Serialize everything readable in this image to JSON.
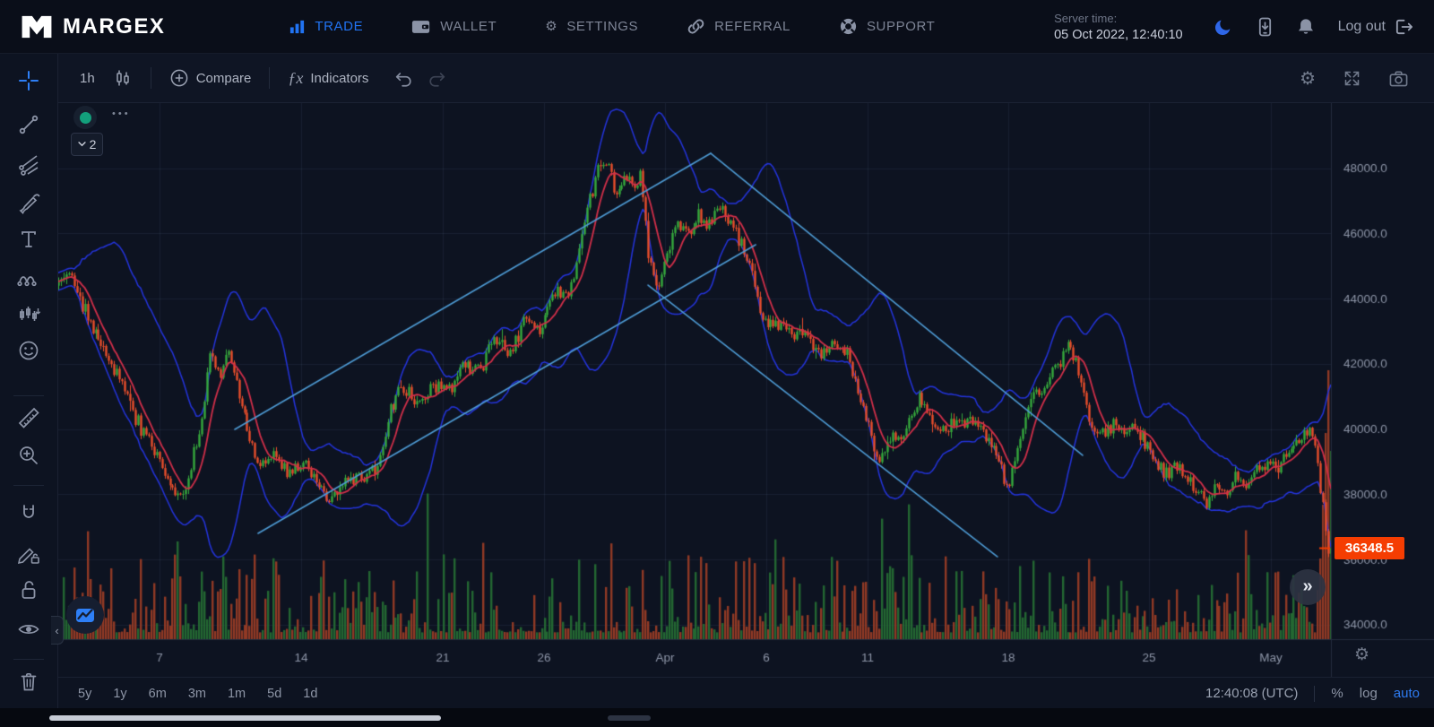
{
  "navbar": {
    "brand": "MARGEX",
    "items": [
      {
        "id": "trade",
        "label": "TRADE",
        "active": true
      },
      {
        "id": "wallet",
        "label": "WALLET",
        "active": false
      },
      {
        "id": "settings",
        "label": "SETTINGS",
        "active": false
      },
      {
        "id": "referral",
        "label": "REFERRAL",
        "active": false
      },
      {
        "id": "support",
        "label": "SUPPORT",
        "active": false
      }
    ],
    "server_time_label": "Server time:",
    "server_time_value": "05 Oct 2022, 12:40:10",
    "logout_label": "Log out"
  },
  "toolbar": {
    "interval": "1h",
    "compare_label": "Compare",
    "indicators_label": "Indicators",
    "indicators_icon": "ƒx"
  },
  "legend": {
    "more_icon": "•••",
    "collapse_count": "2"
  },
  "sidebar_tools": [
    "crosshair",
    "trend-line",
    "pitchfork",
    "brush",
    "text",
    "patterns",
    "bars-pattern",
    "emoji",
    "measure",
    "zoom-in",
    "magnet",
    "drawing-lock",
    "lock-all",
    "hide-drawings",
    "remove-drawings"
  ],
  "bottom_bar": {
    "ranges": [
      "5y",
      "1y",
      "6m",
      "3m",
      "1m",
      "5d",
      "1d"
    ],
    "clock": "12:40:08 (UTC)",
    "percent_label": "%",
    "log_label": "log",
    "auto_label": "auto"
  },
  "chart_data": {
    "type": "candlestick",
    "interval": "1h",
    "legend_collapsed_count": "2",
    "grid": true,
    "seed": 9,
    "candle_count": 480,
    "y_axis": {
      "price_top": 50000,
      "price_bottom": 33560,
      "ticks": [
        {
          "label": "48000.0",
          "value": 48000
        },
        {
          "label": "46000.0",
          "value": 46000
        },
        {
          "label": "44000.0",
          "value": 44000
        },
        {
          "label": "42000.0",
          "value": 42000
        },
        {
          "label": "40000.0",
          "value": 40000
        },
        {
          "label": "38000.0",
          "value": 38000
        },
        {
          "label": "36000.0",
          "value": 36000
        },
        {
          "label": "34000.0",
          "value": 34000
        }
      ]
    },
    "x_axis": {
      "labels": [
        {
          "label": "7",
          "t": 0.0796
        },
        {
          "label": "14",
          "t": 0.1908
        },
        {
          "label": "21",
          "t": 0.3021
        },
        {
          "label": "26",
          "t": 0.3817
        },
        {
          "label": "Apr",
          "t": 0.4768
        },
        {
          "label": "6",
          "t": 0.5563
        },
        {
          "label": "11",
          "t": 0.6359
        },
        {
          "label": "18",
          "t": 0.7465
        },
        {
          "label": "25",
          "t": 0.857
        },
        {
          "label": "May",
          "t": 0.9528
        }
      ]
    },
    "last_price": {
      "label": "36348.5",
      "value": 36348.5
    },
    "series_keypoints": [
      [
        0.0,
        44400
      ],
      [
        0.006,
        44850
      ],
      [
        0.018,
        43900
      ],
      [
        0.032,
        42700
      ],
      [
        0.046,
        41600
      ],
      [
        0.06,
        40400
      ],
      [
        0.074,
        39400
      ],
      [
        0.088,
        38300
      ],
      [
        0.096,
        37950
      ],
      [
        0.104,
        38700
      ],
      [
        0.112,
        40300
      ],
      [
        0.12,
        42400
      ],
      [
        0.127,
        41400
      ],
      [
        0.134,
        42550
      ],
      [
        0.143,
        40900
      ],
      [
        0.152,
        39300
      ],
      [
        0.16,
        38850
      ],
      [
        0.17,
        39400
      ],
      [
        0.18,
        38600
      ],
      [
        0.192,
        39100
      ],
      [
        0.204,
        38350
      ],
      [
        0.216,
        37800
      ],
      [
        0.228,
        38600
      ],
      [
        0.24,
        38350
      ],
      [
        0.252,
        39000
      ],
      [
        0.262,
        40800
      ],
      [
        0.272,
        41300
      ],
      [
        0.282,
        40700
      ],
      [
        0.294,
        41400
      ],
      [
        0.306,
        41100
      ],
      [
        0.318,
        42100
      ],
      [
        0.33,
        41700
      ],
      [
        0.342,
        42700
      ],
      [
        0.354,
        42300
      ],
      [
        0.366,
        43300
      ],
      [
        0.378,
        43000
      ],
      [
        0.39,
        44300
      ],
      [
        0.4,
        44050
      ],
      [
        0.408,
        45200
      ],
      [
        0.416,
        46900
      ],
      [
        0.424,
        48000
      ],
      [
        0.43,
        48200
      ],
      [
        0.438,
        47200
      ],
      [
        0.446,
        47750
      ],
      [
        0.452,
        47350
      ],
      [
        0.458,
        47800
      ],
      [
        0.464,
        45200
      ],
      [
        0.47,
        44400
      ],
      [
        0.478,
        45400
      ],
      [
        0.486,
        46350
      ],
      [
        0.494,
        45900
      ],
      [
        0.502,
        46550
      ],
      [
        0.51,
        46150
      ],
      [
        0.518,
        46800
      ],
      [
        0.528,
        46350
      ],
      [
        0.538,
        45600
      ],
      [
        0.548,
        44300
      ],
      [
        0.553,
        43400
      ],
      [
        0.57,
        43100
      ],
      [
        0.585,
        42900
      ],
      [
        0.598,
        42300
      ],
      [
        0.608,
        42500
      ],
      [
        0.62,
        42200
      ],
      [
        0.632,
        40800
      ],
      [
        0.645,
        39000
      ],
      [
        0.655,
        39700
      ],
      [
        0.665,
        39800
      ],
      [
        0.676,
        41100
      ],
      [
        0.69,
        39800
      ],
      [
        0.7,
        40100
      ],
      [
        0.715,
        40300
      ],
      [
        0.728,
        39900
      ],
      [
        0.74,
        38900
      ],
      [
        0.746,
        38150
      ],
      [
        0.755,
        39600
      ],
      [
        0.765,
        41000
      ],
      [
        0.775,
        41400
      ],
      [
        0.785,
        41900
      ],
      [
        0.793,
        42750
      ],
      [
        0.8,
        42000
      ],
      [
        0.808,
        40600
      ],
      [
        0.815,
        39700
      ],
      [
        0.822,
        39900
      ],
      [
        0.83,
        40200
      ],
      [
        0.838,
        39800
      ],
      [
        0.846,
        40100
      ],
      [
        0.854,
        39500
      ],
      [
        0.862,
        39000
      ],
      [
        0.87,
        38600
      ],
      [
        0.878,
        38950
      ],
      [
        0.886,
        38500
      ],
      [
        0.894,
        38050
      ],
      [
        0.902,
        37750
      ],
      [
        0.91,
        38350
      ],
      [
        0.918,
        38000
      ],
      [
        0.926,
        38500
      ],
      [
        0.934,
        38250
      ],
      [
        0.942,
        38700
      ],
      [
        0.95,
        39100
      ],
      [
        0.958,
        38800
      ],
      [
        0.966,
        39300
      ],
      [
        0.974,
        39600
      ],
      [
        0.982,
        40000
      ],
      [
        0.988,
        39500
      ],
      [
        0.993,
        37800
      ],
      [
        0.997,
        36300
      ],
      [
        1.0,
        36348.5
      ]
    ],
    "indicators": [
      {
        "name": "moving-average",
        "color": "#d12f49"
      },
      {
        "name": "bollinger-bands",
        "color": "#2434dd"
      }
    ],
    "drawings": [
      {
        "name": "ascending-channel-upper",
        "t1": 0.1387,
        "p1": 39993,
        "t2": 0.5127,
        "p2": 48460
      },
      {
        "name": "ascending-channel-lower",
        "t1": 0.157,
        "p1": 36804,
        "t2": 0.548,
        "p2": 45656
      },
      {
        "name": "descending-channel-upper",
        "t1": 0.5127,
        "p1": 48460,
        "t2": 0.8049,
        "p2": 39196
      },
      {
        "name": "descending-channel-lower",
        "t1": 0.4634,
        "p1": 44419,
        "t2": 0.738,
        "p2": 36089
      }
    ],
    "volume": {
      "up_color": "rgba(38,112,52,0.9)",
      "down_color": "rgba(158,62,38,0.9)",
      "end_spike_heights": [
        55,
        90,
        150,
        230,
        300,
        210
      ]
    },
    "colors": {
      "background": "#0d1321",
      "grid": "rgba(125,150,200,0.10)",
      "axis_text": "#8e96a8",
      "axis_border": "#242c3e",
      "up": "#36a93c",
      "down": "#e84e2c",
      "trend_line": "#4e9bd4",
      "price_tag_bg": "#f53d02"
    }
  }
}
